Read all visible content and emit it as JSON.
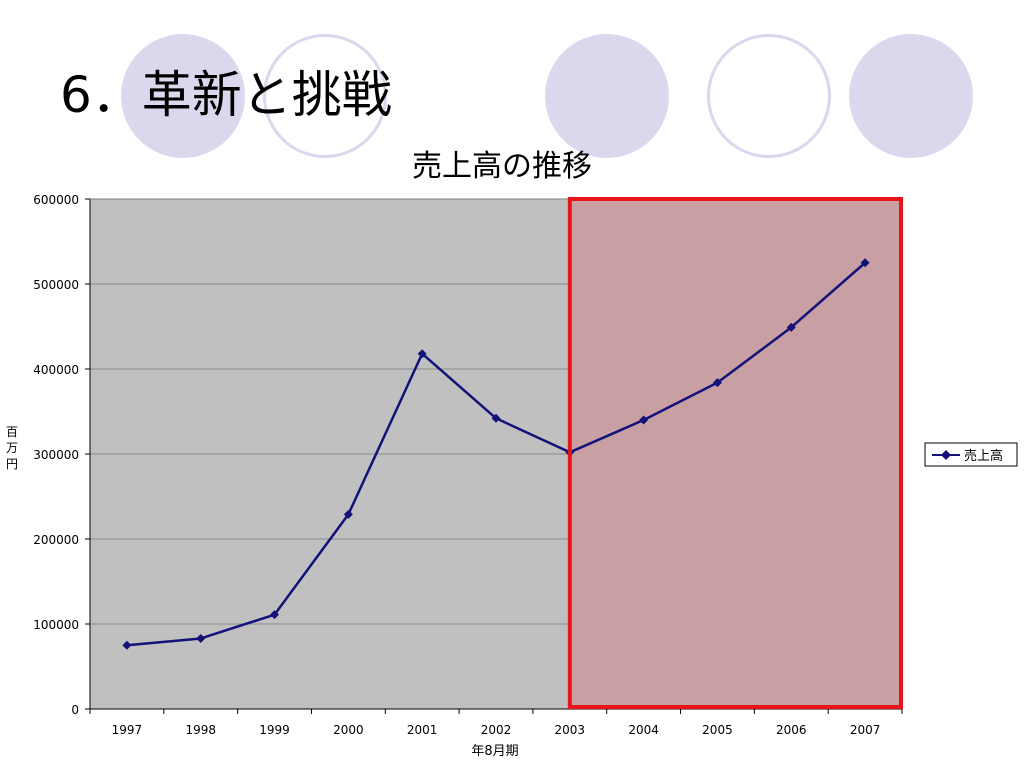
{
  "slide": {
    "title": "6．革新と挑戦"
  },
  "colors": {
    "decorative_circle": "#d9d8ec",
    "plot_background": "#c0c0c0",
    "highlight_fill": "#c8a0a3",
    "highlight_border": "#e8141a",
    "series_line": "#12127a"
  },
  "chart_data": {
    "type": "line",
    "title": "売上高の推移",
    "xlabel": "年8月期",
    "ylabel": "百万円",
    "x": [
      "1997",
      "1998",
      "1999",
      "2000",
      "2001",
      "2002",
      "2003",
      "2004",
      "2005",
      "2006",
      "2007"
    ],
    "series": [
      {
        "name": "売上高",
        "values": [
          75000,
          83000,
          111000,
          229000,
          418000,
          342000,
          302000,
          340000,
          384000,
          449000,
          525000
        ],
        "marker": "diamond",
        "color": "#12127a"
      }
    ],
    "ylim": [
      0,
      600000
    ],
    "y_ticks": [
      "0",
      "100000",
      "200000",
      "300000",
      "400000",
      "500000",
      "600000"
    ],
    "grid": true,
    "legend": "right",
    "highlight_range": [
      "2003",
      "2007"
    ]
  }
}
